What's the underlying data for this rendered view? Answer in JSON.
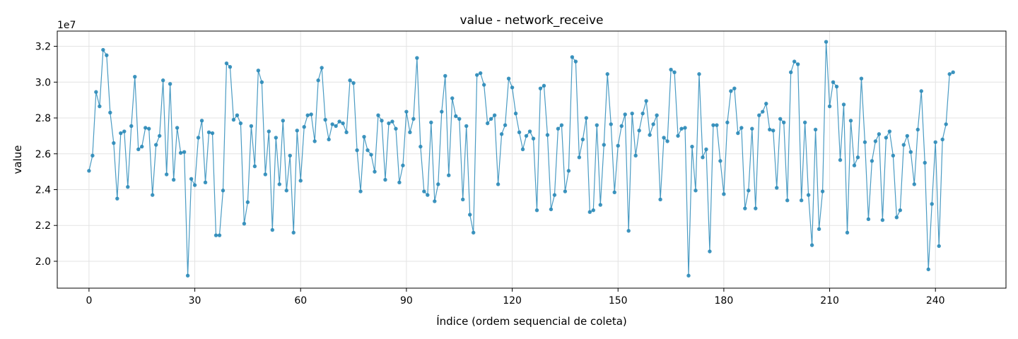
{
  "chart_data": {
    "type": "line",
    "title": "value - network_receive",
    "xlabel": "Índice (ordem sequencial de coleta)",
    "ylabel": "value",
    "y_offset_label": "1e7",
    "y_scale_factor": 10000000,
    "xlim": [
      -9,
      260
    ],
    "ylim": [
      18500000,
      32850000
    ],
    "x_ticks": [
      0,
      30,
      60,
      90,
      120,
      150,
      180,
      210,
      240
    ],
    "y_ticks": [
      20000000,
      22000000,
      24000000,
      26000000,
      28000000,
      30000000,
      32000000
    ],
    "grid": true,
    "legend": "none",
    "color": "#2a8ab8",
    "marker": "circle",
    "series": [
      {
        "values": [
          25050000,
          25900000,
          29450000,
          28650000,
          31800000,
          31500000,
          28300000,
          26600000,
          23500000,
          27150000,
          27250000,
          24150000,
          27550000,
          30300000,
          26250000,
          26400000,
          27450000,
          27400000,
          23700000,
          26500000,
          27000000,
          30100000,
          24850000,
          29900000,
          24550000,
          27450000,
          26050000,
          26100000,
          19200000,
          24600000,
          24250000,
          26900000,
          27850000,
          24400000,
          27200000,
          27150000,
          21450000,
          21450000,
          23950000,
          31050000,
          30850000,
          27900000,
          28150000,
          27700000,
          22100000,
          23300000,
          27550000,
          25300000,
          30650000,
          30000000,
          24850000,
          27250000,
          21750000,
          26900000,
          24300000,
          27850000,
          23950000,
          25900000,
          21600000,
          27300000,
          24500000,
          27500000,
          28150000,
          28200000,
          26700000,
          30100000,
          30800000,
          27900000,
          26800000,
          27650000,
          27550000,
          27800000,
          27700000,
          27200000,
          30100000,
          29950000,
          26200000,
          23900000,
          26950000,
          26200000,
          25950000,
          25000000,
          28150000,
          27850000,
          24550000,
          27700000,
          27800000,
          27400000,
          24400000,
          25350000,
          28350000,
          27200000,
          27950000,
          31350000,
          26400000,
          23900000,
          23700000,
          27750000,
          23350000,
          24300000,
          28350000,
          30350000,
          24800000,
          29100000,
          28100000,
          27950000,
          23450000,
          27550000,
          22600000,
          21600000,
          30400000,
          30500000,
          29850000,
          27700000,
          27950000,
          28150000,
          24300000,
          27100000,
          27600000,
          30200000,
          29700000,
          28250000,
          27200000,
          26250000,
          27000000,
          27250000,
          26850000,
          22850000,
          29650000,
          29800000,
          27050000,
          22900000,
          23700000,
          27400000,
          27600000,
          23900000,
          25050000,
          31400000,
          31150000,
          25800000,
          26800000,
          28000000,
          22750000,
          22850000,
          27600000,
          23150000,
          26500000,
          30450000,
          27650000,
          23850000,
          26450000,
          27550000,
          28200000,
          21700000,
          28250000,
          25900000,
          27300000,
          28250000,
          28950000,
          27050000,
          27650000,
          28150000,
          23450000,
          26900000,
          26700000,
          30700000,
          30550000,
          27000000,
          27400000,
          27450000,
          19200000,
          26400000,
          23950000,
          30450000,
          25800000,
          26250000,
          20550000,
          27600000,
          27600000,
          25600000,
          23750000,
          27750000,
          29500000,
          29650000,
          27150000,
          27450000,
          22950000,
          23950000,
          27400000,
          22950000,
          28150000,
          28350000,
          28800000,
          27350000,
          27300000,
          24100000,
          27950000,
          27750000,
          23400000,
          30550000,
          31150000,
          31000000,
          23400000,
          27750000,
          23700000,
          20900000,
          27350000,
          21800000,
          23900000,
          32250000,
          28650000,
          30000000,
          29750000,
          25650000,
          28750000,
          21600000,
          27850000,
          25350000,
          25800000,
          30200000,
          26650000,
          22350000,
          25600000,
          26700000,
          27100000,
          22300000,
          26900000,
          27250000,
          25900000,
          22450000,
          22850000,
          26500000,
          27000000,
          26100000,
          24300000,
          27350000,
          29500000,
          25500000,
          19550000,
          23200000,
          26650000,
          20850000,
          26800000,
          27650000,
          30450000,
          30550000
        ]
      }
    ]
  }
}
